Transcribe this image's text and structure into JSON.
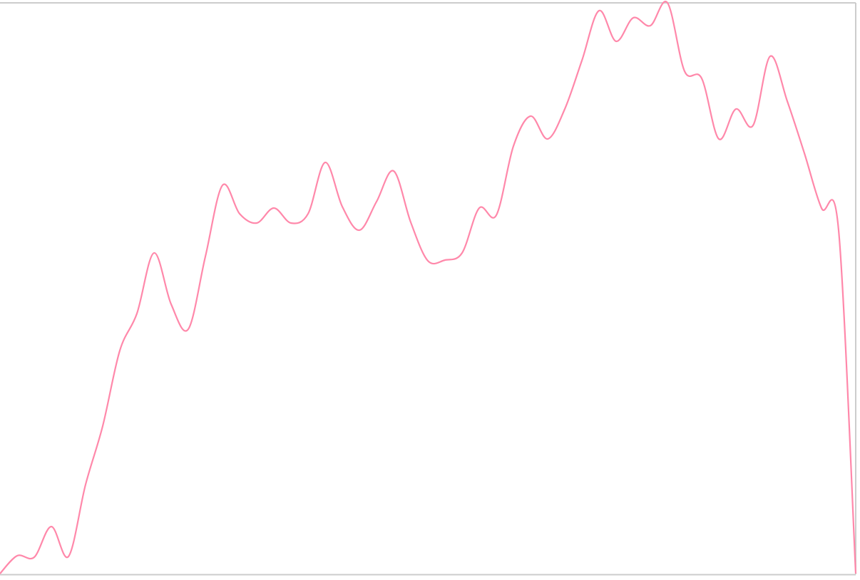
{
  "chart_data": {
    "type": "line",
    "title": "",
    "xlabel": "",
    "ylabel": "",
    "grid": false,
    "legend": "none",
    "line_color": "#ff88aa",
    "frame_color": "#cccccc",
    "x": [
      0,
      1,
      2,
      3,
      4,
      5,
      6,
      7,
      8,
      9,
      10,
      11,
      12,
      13,
      14,
      15,
      16,
      17,
      18,
      19,
      20,
      21,
      22,
      23,
      24,
      25,
      26,
      27,
      28,
      29,
      30,
      31,
      32,
      33,
      34,
      35,
      36,
      37,
      38,
      39,
      40,
      41,
      42,
      43,
      44,
      45,
      46,
      47,
      48,
      49,
      50
    ],
    "xlim": [
      0,
      50
    ],
    "ylim": [
      0,
      801
    ],
    "series": [
      {
        "values": [
          0,
          25,
          23,
          66,
          24,
          125,
          207,
          313,
          365,
          450,
          378,
          343,
          445,
          545,
          505,
          492,
          513,
          492,
          505,
          577,
          515,
          482,
          522,
          565,
          493,
          439,
          440,
          450,
          513,
          503,
          600,
          642,
          610,
          652,
          720,
          790,
          747,
          780,
          769,
          801,
          705,
          695,
          610,
          652,
          629,
          726,
          663,
          590,
          513,
          482,
          0
        ]
      }
    ]
  }
}
